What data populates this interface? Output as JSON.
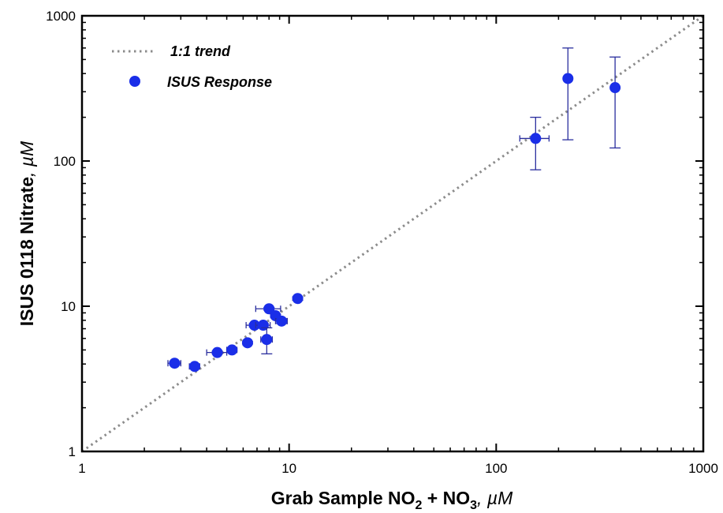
{
  "chart_data": {
    "type": "scatter",
    "xscale": "log",
    "yscale": "log",
    "xlim": [
      1,
      1000
    ],
    "ylim": [
      1,
      1000
    ],
    "x_ticks": [
      1,
      10,
      100,
      1000
    ],
    "y_ticks": [
      1,
      10,
      100,
      1000
    ],
    "x_tick_labels": [
      "1",
      "10",
      "100",
      "1000"
    ],
    "y_tick_labels": [
      "1",
      "10",
      "100",
      "1000"
    ],
    "xlabel": {
      "main": "Grab Sample NO",
      "sub1": "2",
      "mid": " + NO",
      "sub2": "3",
      "sep": ", ",
      "unit": "µM"
    },
    "ylabel": {
      "main": "ISUS 0118 Nitrate",
      "sep": ", ",
      "unit": "µM"
    },
    "grid": false,
    "legend": {
      "placement": "top-left",
      "entries": [
        {
          "label": "1:1 trend",
          "style": "dotted-line"
        },
        {
          "label": "ISUS Response",
          "style": "marker"
        }
      ]
    },
    "colors": {
      "points": "#1a2ee8",
      "error_bars": "#2a2e9e",
      "trend": "#8c8c8c"
    },
    "trend_line": {
      "x": [
        1,
        1000
      ],
      "y": [
        1,
        1000
      ]
    },
    "series": [
      {
        "name": "ISUS Response",
        "points": [
          {
            "x": 2.8,
            "y": 4.05,
            "xerr": [
              0.2,
              0.2
            ],
            "yerr": [
              0.1,
              0.1
            ]
          },
          {
            "x": 3.5,
            "y": 3.85,
            "xerr": [
              0.2,
              0.2
            ],
            "yerr": [
              0.1,
              0.1
            ]
          },
          {
            "x": 4.5,
            "y": 4.8,
            "xerr": [
              0.5,
              0.5
            ],
            "yerr": [
              0.1,
              0.1
            ]
          },
          {
            "x": 5.3,
            "y": 5.0,
            "xerr": [
              0.3,
              0.3
            ],
            "yerr": [
              0.1,
              0.1
            ]
          },
          {
            "x": 6.3,
            "y": 5.6,
            "xerr": [
              0.3,
              0.3
            ],
            "yerr": [
              0.1,
              0.1
            ]
          },
          {
            "x": 6.8,
            "y": 7.4,
            "xerr": [
              0.6,
              0.6
            ],
            "yerr": [
              0.2,
              0.2
            ]
          },
          {
            "x": 7.5,
            "y": 7.4,
            "xerr": [
              0.6,
              0.6
            ],
            "yerr": [
              0.2,
              0.2
            ]
          },
          {
            "x": 7.8,
            "y": 5.9,
            "xerr": [
              0.5,
              0.5
            ],
            "yerr": [
              1.2,
              1.2
            ]
          },
          {
            "x": 8.0,
            "y": 9.6,
            "xerr": [
              1.1,
              1.1
            ],
            "yerr": [
              0.2,
              0.2
            ]
          },
          {
            "x": 8.6,
            "y": 8.6,
            "xerr": [
              0.4,
              0.4
            ],
            "yerr": [
              0.2,
              0.2
            ]
          },
          {
            "x": 9.2,
            "y": 7.9,
            "xerr": [
              0.6,
              0.6
            ],
            "yerr": [
              0.3,
              0.3
            ]
          },
          {
            "x": 11.0,
            "y": 11.3,
            "xerr": [
              0.3,
              0.3
            ],
            "yerr": [
              0.3,
              0.3
            ]
          },
          {
            "x": 155,
            "y": 143,
            "xerr": [
              25,
              25
            ],
            "yerr": [
              56,
              57
            ]
          },
          {
            "x": 222,
            "y": 370,
            "xerr": [
              3,
              3
            ],
            "yerr": [
              230,
              230
            ]
          },
          {
            "x": 375,
            "y": 320,
            "xerr": [
              3,
              3
            ],
            "yerr": [
              197,
              200
            ]
          }
        ]
      }
    ]
  }
}
